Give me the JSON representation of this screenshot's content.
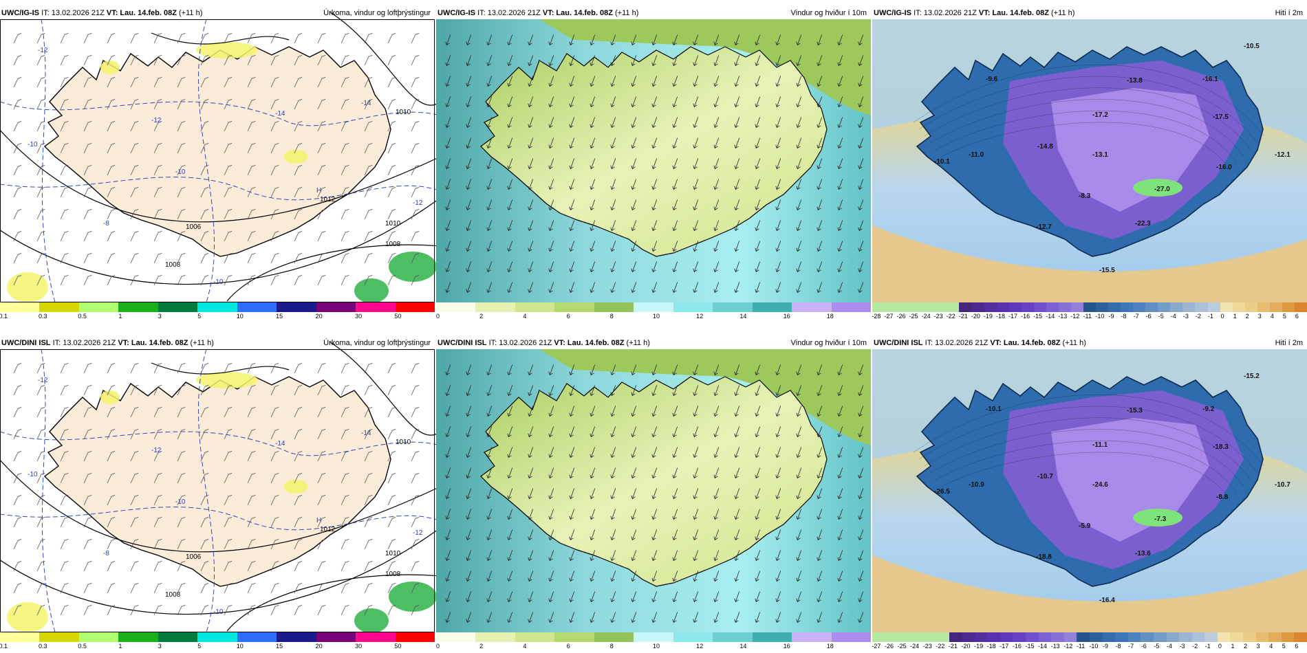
{
  "rows": [
    {
      "panels": [
        {
          "model": "UWC/IG-IS",
          "it": "IT: 13.02.2026 21Z",
          "vt_label": "VT:",
          "vt": "Lau. 14.feb. 08Z",
          "lead": "(+11 h)",
          "title": "Úrkoma, vindur og loftþrýstingur",
          "kind": "precip",
          "labels": [
            "-12",
            "-14",
            "-12",
            "-10",
            "-8",
            "-10",
            "-8",
            "-10",
            "-12",
            "-14",
            "1012",
            "1010",
            "1008",
            "1006",
            "1008",
            "1010",
            "H"
          ]
        },
        {
          "model": "UWC/IG-IS",
          "it": "IT: 13.02.2026 21Z",
          "vt_label": "VT:",
          "vt": "Lau. 14.feb. 08Z",
          "lead": "(+11 h)",
          "title": "Vindur og hviður í 10m",
          "kind": "wind",
          "labels": []
        },
        {
          "model": "UWC/IG-IS",
          "it": "IT: 13.02.2026 21Z",
          "vt_label": "VT:",
          "vt": "Lau. 14.feb. 08Z",
          "lead": "(+11 h)",
          "title": "Hiti í 2m",
          "kind": "temp",
          "labels": [
            "-10.5",
            "-9.6",
            "-13.8",
            "-16.1",
            "-17.2",
            "-17.5",
            "-14.8",
            "-11.0",
            "-13.1",
            "-12.1",
            "-16.0",
            "-10.1",
            "-27.0",
            "-8.3",
            "-22.3",
            "-12.7",
            "-15.5"
          ]
        }
      ]
    },
    {
      "panels": [
        {
          "model": "UWC/DINI ISL",
          "it": "IT: 13.02.2026 21Z",
          "vt_label": "VT:",
          "vt": "Lau. 14.feb. 08Z",
          "lead": "(+11 h)",
          "title": "Úrkoma, vindur og loftþrýstingur",
          "kind": "precip",
          "labels": [
            "-12",
            "-14",
            "-12",
            "-10",
            "-8",
            "-10",
            "-8",
            "-10",
            "-12",
            "-14",
            "1012",
            "1010",
            "1008",
            "1006",
            "1008",
            "1010",
            "H"
          ]
        },
        {
          "model": "UWC/DINI ISL",
          "it": "IT: 13.02.2026 21Z",
          "vt_label": "VT:",
          "vt": "Lau. 14.feb. 08Z",
          "lead": "(+11 h)",
          "title": "Vindur og hviður í 10m",
          "kind": "wind",
          "labels": []
        },
        {
          "model": "UWC/DINI ISL",
          "it": "IT: 13.02.2026 21Z",
          "vt_label": "VT:",
          "vt": "Lau. 14.feb. 08Z",
          "lead": "(+11 h)",
          "title": "Hiti í 2m",
          "kind": "temp",
          "labels": [
            "-15.2",
            "-10.1",
            "-15.3",
            "-9.2",
            "-11.1",
            "-18.3",
            "-10.7",
            "-10.9",
            "-24.6",
            "-10.7",
            "-8.8",
            "-26.5",
            "-7.3",
            "-5.9",
            "-13.6",
            "-18.8",
            "-16.4"
          ]
        }
      ]
    }
  ],
  "legends": {
    "precip": {
      "ticks": [
        "0.1",
        "0.3",
        "0.5",
        "1",
        "3",
        "5",
        "10",
        "15",
        "20",
        "30",
        "50"
      ],
      "colors": [
        "#ffff9a",
        "#d6d600",
        "#b0ff70",
        "#19b019",
        "#007a3d",
        "#00e8e0",
        "#2f6dff",
        "#1a1a8c",
        "#7a0078",
        "#ff0a8c",
        "#ff0000"
      ]
    },
    "wind": {
      "ticks": [
        "0",
        "2",
        "4",
        "6",
        "8",
        "10",
        "12",
        "14",
        "16",
        "18"
      ],
      "colors": [
        "#fbfde6",
        "#e6f2b4",
        "#cfe58e",
        "#b5d870",
        "#93c35a",
        "#c7f7f8",
        "#8fe8ea",
        "#6ecfd2",
        "#3faeb0",
        "#c8b3f5",
        "#ab8ef0"
      ]
    },
    "temp": {
      "ticks": [
        "-28",
        "-27",
        "-26",
        "-25",
        "-24",
        "-23",
        "-22",
        "-21",
        "-20",
        "-19",
        "-18",
        "-17",
        "-16",
        "-15",
        "-14",
        "-13",
        "-12",
        "-11",
        "-10",
        "-9",
        "-8",
        "-7",
        "-6",
        "-5",
        "-4",
        "-3",
        "-2",
        "-1",
        "0",
        "1",
        "2",
        "3",
        "4",
        "5",
        "6"
      ],
      "ticks_dini": [
        "-27",
        "-26",
        "-25",
        "-24",
        "-23",
        "-22",
        "-21",
        "-20",
        "-19",
        "-18",
        "-17",
        "-16",
        "-15",
        "-14",
        "-13",
        "-12",
        "-11",
        "-10",
        "-9",
        "-8",
        "-7",
        "-6",
        "-5",
        "-4",
        "-3",
        "-2",
        "-1",
        "0",
        "1",
        "2",
        "3",
        "4",
        "5",
        "6"
      ]
    }
  },
  "colors": {
    "land_precip": "#fbebd9",
    "sea_precip": "#ffffff",
    "coast": "#000000",
    "isobar": "#000000",
    "isotherm": "#3347b8"
  }
}
